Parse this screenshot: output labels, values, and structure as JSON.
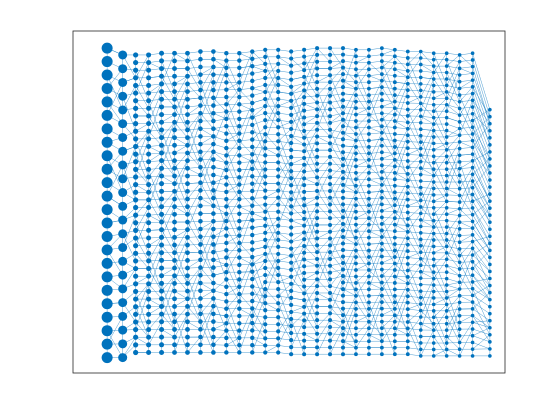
{
  "chart_data": {
    "type": "graph",
    "color": "#0072bd",
    "xlim": [
      0,
      100
    ],
    "ylim": [
      0,
      100
    ],
    "columns": [
      {
        "x": 7.9,
        "top": 95,
        "bottom": 4.5,
        "count": 24,
        "size": 5.5
      },
      {
        "x": 11.5,
        "top": 93,
        "bottom": 4.5,
        "count": 23,
        "size": 4.5
      },
      {
        "x": 14.5,
        "top": 93,
        "bottom": 6,
        "count": 40,
        "size": 2.6
      },
      {
        "x": 17.5,
        "top": 93,
        "bottom": 6,
        "count": 40,
        "size": 2.5
      },
      {
        "x": 20.5,
        "top": 93.5,
        "bottom": 6,
        "count": 40,
        "size": 2.5
      },
      {
        "x": 23.5,
        "top": 93.5,
        "bottom": 6,
        "count": 40,
        "size": 2.4
      },
      {
        "x": 26.5,
        "top": 93.5,
        "bottom": 6,
        "count": 40,
        "size": 2.4
      },
      {
        "x": 29.5,
        "top": 94,
        "bottom": 6,
        "count": 40,
        "size": 2.3
      },
      {
        "x": 32.5,
        "top": 94,
        "bottom": 6,
        "count": 40,
        "size": 2.3
      },
      {
        "x": 35.5,
        "top": 93.5,
        "bottom": 6,
        "count": 42,
        "size": 2.2
      },
      {
        "x": 38.5,
        "top": 93.5,
        "bottom": 6,
        "count": 42,
        "size": 2.2
      },
      {
        "x": 41.5,
        "top": 94,
        "bottom": 6,
        "count": 42,
        "size": 2.2
      },
      {
        "x": 44.5,
        "top": 94.5,
        "bottom": 6,
        "count": 44,
        "size": 2.1
      },
      {
        "x": 47.5,
        "top": 94.5,
        "bottom": 6,
        "count": 44,
        "size": 2.1
      },
      {
        "x": 50.5,
        "top": 94,
        "bottom": 5.5,
        "count": 44,
        "size": 2.1
      },
      {
        "x": 53.5,
        "top": 94.5,
        "bottom": 5.5,
        "count": 46,
        "size": 2
      },
      {
        "x": 56.5,
        "top": 95,
        "bottom": 5.5,
        "count": 46,
        "size": 2
      },
      {
        "x": 59.5,
        "top": 95,
        "bottom": 5.5,
        "count": 46,
        "size": 2
      },
      {
        "x": 62.5,
        "top": 95,
        "bottom": 5.5,
        "count": 48,
        "size": 2
      },
      {
        "x": 65.5,
        "top": 94.5,
        "bottom": 5.5,
        "count": 48,
        "size": 1.9
      },
      {
        "x": 68.5,
        "top": 94.5,
        "bottom": 5.5,
        "count": 48,
        "size": 1.9
      },
      {
        "x": 71.5,
        "top": 95,
        "bottom": 5.5,
        "count": 48,
        "size": 1.9
      },
      {
        "x": 74.5,
        "top": 94.5,
        "bottom": 5.5,
        "count": 48,
        "size": 1.9
      },
      {
        "x": 77.5,
        "top": 94,
        "bottom": 5.5,
        "count": 48,
        "size": 1.9
      },
      {
        "x": 80.5,
        "top": 94,
        "bottom": 5,
        "count": 48,
        "size": 1.8
      },
      {
        "x": 83.5,
        "top": 93.5,
        "bottom": 5,
        "count": 48,
        "size": 1.8
      },
      {
        "x": 86.5,
        "top": 93.5,
        "bottom": 5,
        "count": 48,
        "size": 1.8
      },
      {
        "x": 89.5,
        "top": 93,
        "bottom": 5,
        "count": 46,
        "size": 1.8
      },
      {
        "x": 92.5,
        "top": 93.5,
        "bottom": 5,
        "count": 46,
        "size": 1.8
      },
      {
        "x": 96.5,
        "top": 77,
        "bottom": 5,
        "count": 36,
        "size": 1.8
      }
    ]
  }
}
